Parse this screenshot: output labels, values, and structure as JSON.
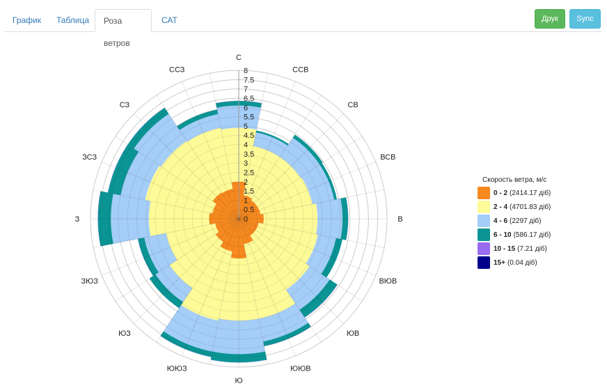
{
  "tabs": [
    {
      "label": "График",
      "active": false
    },
    {
      "label": "Таблица",
      "active": false
    },
    {
      "label": "Роза ветров",
      "active": true
    },
    {
      "label": "САТ",
      "active": false
    }
  ],
  "buttons": {
    "print": "Друк",
    "sync": "Sync"
  },
  "colors": {
    "print": "#5cb85c",
    "sync": "#5bc0de"
  },
  "chart_data": {
    "type": "wind-rose (stacked polar bar)",
    "categories": [
      "С",
      "ССВ",
      "СВ",
      "ВСВ",
      "В",
      "ВЮВ",
      "ЮВ",
      "ЮЮВ",
      "Ю",
      "ЮЮЗ",
      "ЮЗ",
      "ЗЮЗ",
      "З",
      "ЗСЗ",
      "СЗ",
      "ССЗ"
    ],
    "radial_ticks": [
      "0",
      "0.5",
      "1",
      "1.5",
      "2",
      "2.5",
      "3",
      "3.5",
      "4",
      "4.5",
      "5",
      "5.5",
      "6",
      "6.5",
      "7",
      "7.5",
      "8"
    ],
    "rlim": [
      0,
      8
    ],
    "stacked": true,
    "grid": true,
    "legend_position": "right",
    "legend_title": "Скорость ветра, м/с",
    "series": [
      {
        "name": "0 - 2",
        "note": "(2414.17 діб)",
        "color": "#f7891e",
        "values": [
          2.0,
          1.3,
          1.2,
          1.2,
          1.35,
          1.1,
          1.1,
          1.4,
          2.15,
          1.8,
          1.5,
          1.3,
          1.6,
          1.45,
          1.7,
          1.65
        ]
      },
      {
        "name": "2 - 4",
        "note": "(4701.83 діб)",
        "color": "#fdfa98",
        "values": [
          2.9,
          2.7,
          2.8,
          2.85,
          2.9,
          3.25,
          3.5,
          4.1,
          3.35,
          3.8,
          3.0,
          2.7,
          3.25,
          3.7,
          3.35,
          3.35
        ]
      },
      {
        "name": "4 - 6",
        "note": "(2297 діб)",
        "color": "#a4cdf8",
        "values": [
          1.2,
          0.75,
          1.25,
          1.2,
          1.35,
          1.0,
          1.3,
          1.25,
          1.8,
          1.7,
          0.9,
          1.2,
          2.05,
          1.35,
          1.75,
          0.75
        ]
      },
      {
        "name": "6 - 10",
        "note": "(586.17 діб)",
        "color": "#0b9494",
        "values": [
          0.25,
          0.1,
          0.2,
          0.15,
          0.3,
          0.35,
          0.5,
          0.25,
          0.45,
          0.3,
          0.4,
          0.35,
          0.7,
          0.7,
          0.4,
          0.25
        ]
      },
      {
        "name": "10 - 15",
        "note": "(7.21 діб)",
        "color": "#9a6af0",
        "values": [
          0.01,
          0,
          0,
          0,
          0.01,
          0,
          0.01,
          0.01,
          0.01,
          0.01,
          0,
          0.01,
          0.01,
          0.01,
          0.01,
          0
        ]
      },
      {
        "name": "15+",
        "note": "(0.04 діб)",
        "color": "#00008b",
        "values": [
          0,
          0,
          0,
          0,
          0,
          0,
          0,
          0,
          0,
          0,
          0,
          0,
          0,
          0,
          0,
          0
        ]
      }
    ]
  }
}
